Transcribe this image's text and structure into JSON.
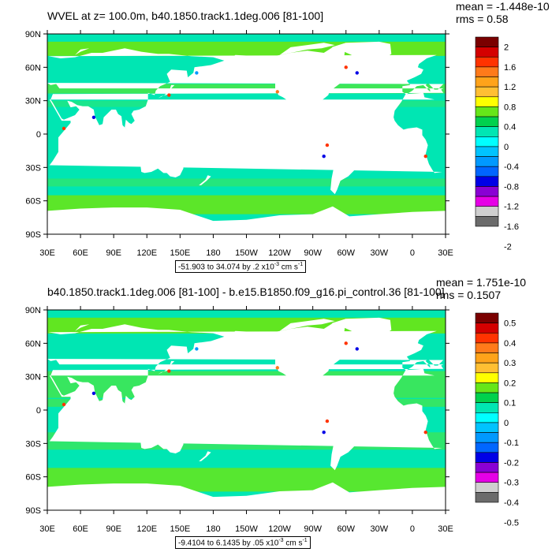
{
  "panels": [
    {
      "title": "WVEL at z= 100.0m, b40.1850.track1.1deg.006 [81-100]",
      "mean_text": "mean = -1.448e-10",
      "rms_text": "rms = 0.58",
      "info_text": "-51.903 to 34.074 by .2 x10",
      "info_exp": "-3",
      "info_units": " cm s",
      "info_units_exp": "-1",
      "lat_labels": [
        "90N",
        "60N",
        "30N",
        "0",
        "30S",
        "60S",
        "90S"
      ],
      "lon_labels": [
        "30E",
        "60E",
        "90E",
        "120E",
        "150E",
        "180",
        "150W",
        "120W",
        "90W",
        "60W",
        "30W",
        "0",
        "30E"
      ],
      "colorbar": {
        "labels": [
          "2",
          "1.6",
          "1.2",
          "0.8",
          "0.4",
          "0",
          "-0.4",
          "-0.8",
          "-1.2",
          "-1.6",
          "-2"
        ],
        "colors": [
          "#7a0000",
          "#d40000",
          "#ff3300",
          "#ff7a1a",
          "#ffa31a",
          "#ffbf33",
          "#ffff00",
          "#66e619",
          "#00d14d",
          "#00e6b3",
          "#00ffff",
          "#00c3ff",
          "#0099ff",
          "#0066ff",
          "#0000e6",
          "#8a00d4",
          "#e600e6",
          "#cfcfcf",
          "#6b6b6b"
        ]
      }
    },
    {
      "title": "b40.1850.track1.1deg.006 [81-100] - b.e15.B1850.f09_g16.pi_control.36 [81-100]",
      "mean_text": "mean = 1.751e-10",
      "rms_text": "rms = 0.1507",
      "info_text": "-9.4104 to 6.1435 by .05 x10",
      "info_exp": "-3",
      "info_units": " cm s",
      "info_units_exp": "-1",
      "lat_labels": [
        "90N",
        "60N",
        "30N",
        "0",
        "30S",
        "60S",
        "90S"
      ],
      "lon_labels": [
        "30E",
        "60E",
        "90E",
        "120E",
        "150E",
        "180",
        "150W",
        "120W",
        "90W",
        "60W",
        "30W",
        "0",
        "30E"
      ],
      "colorbar": {
        "labels": [
          "0.5",
          "0.4",
          "0.3",
          "0.2",
          "0.1",
          "0",
          "-0.1",
          "-0.2",
          "-0.3",
          "-0.4",
          "-0.5"
        ],
        "colors": [
          "#7a0000",
          "#d40000",
          "#ff3300",
          "#ff7a1a",
          "#ffa31a",
          "#ffbf33",
          "#ffff00",
          "#66e619",
          "#00d14d",
          "#00e6b3",
          "#00ffff",
          "#00c3ff",
          "#0099ff",
          "#0066ff",
          "#0000e6",
          "#8a00d4",
          "#e600e6",
          "#cfcfcf",
          "#6b6b6b"
        ]
      }
    }
  ],
  "colors": {
    "ocean_bg": "#00e6b3",
    "positive_band": "#66e619",
    "strong_positive": "#ff3300",
    "strong_negative": "#0000e6",
    "land": "#ffffff"
  }
}
